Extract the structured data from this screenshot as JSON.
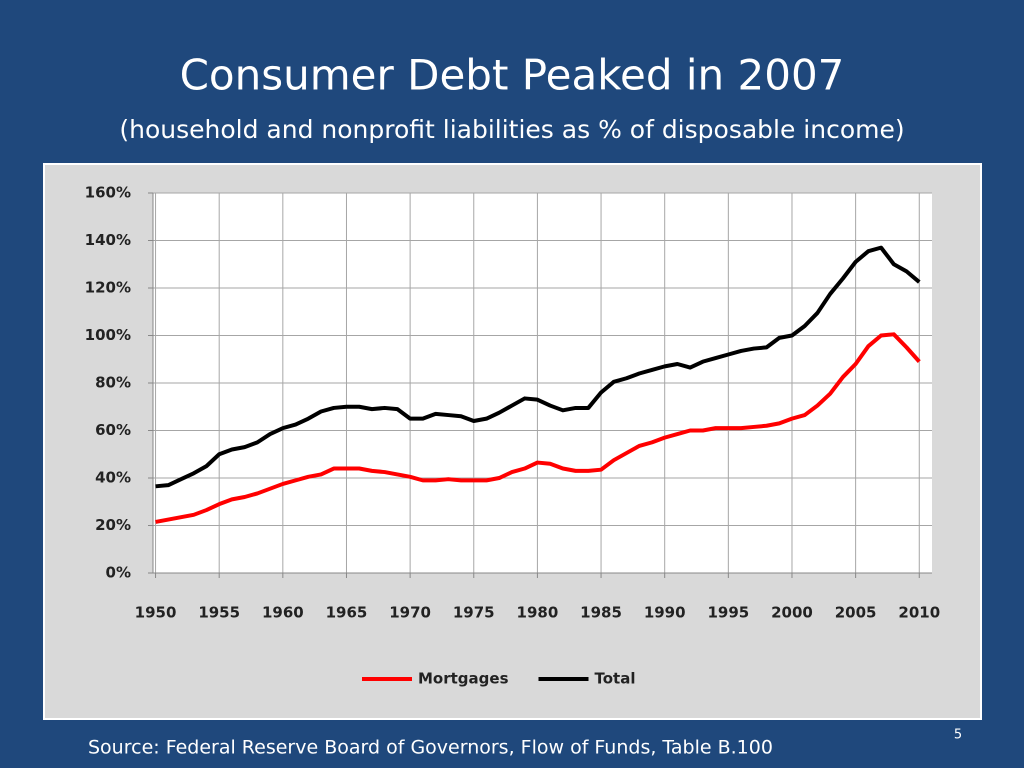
{
  "chart_data": {
    "type": "line",
    "title": "Consumer Debt Peaked in 2007",
    "subtitle": "(household and nonprofit liabilities as % of disposable income)",
    "x": [
      1950,
      1951,
      1952,
      1953,
      1954,
      1955,
      1956,
      1957,
      1958,
      1959,
      1960,
      1961,
      1962,
      1963,
      1964,
      1965,
      1966,
      1967,
      1968,
      1969,
      1970,
      1971,
      1972,
      1973,
      1974,
      1975,
      1976,
      1977,
      1978,
      1979,
      1980,
      1981,
      1982,
      1983,
      1984,
      1985,
      1986,
      1987,
      1988,
      1989,
      1990,
      1991,
      1992,
      1993,
      1994,
      1995,
      1996,
      1997,
      1998,
      1999,
      2000,
      2001,
      2002,
      2003,
      2004,
      2005,
      2006,
      2007,
      2008,
      2009,
      2010
    ],
    "series": [
      {
        "name": "Mortgages",
        "color": "#ff0000",
        "values": [
          21.5,
          22.5,
          23.5,
          24.5,
          26.5,
          29,
          31,
          32,
          33.5,
          35.5,
          37.5,
          39,
          40.5,
          41.5,
          44,
          44,
          44,
          43,
          42.5,
          41.5,
          40.5,
          39,
          39,
          39.5,
          39,
          39,
          39,
          40,
          42.5,
          44,
          46.5,
          46,
          44,
          43,
          43,
          43.5,
          47.5,
          50.5,
          53.5,
          55,
          57,
          58.5,
          60,
          60,
          61,
          61,
          61,
          61.5,
          62,
          63,
          65,
          66.5,
          70.5,
          75.5,
          82.5,
          88,
          95.5,
          100,
          100.5,
          95,
          89
        ]
      },
      {
        "name": "Total",
        "color": "#000000",
        "values": [
          36.5,
          37,
          39.5,
          42,
          45,
          50,
          52,
          53,
          55,
          58.5,
          61,
          62.5,
          65,
          68,
          69.5,
          70,
          70,
          69,
          69.5,
          69,
          65,
          65,
          67,
          66.5,
          66,
          64,
          65,
          67.5,
          70.5,
          73.5,
          73,
          70.5,
          68.5,
          69.5,
          69.5,
          76,
          80.5,
          82,
          84,
          85.5,
          87,
          88,
          86.5,
          89,
          90.5,
          92,
          93.5,
          94.5,
          95,
          99,
          100,
          104,
          109.5,
          117.5,
          124,
          131,
          135.5,
          137,
          130,
          127,
          122.5
        ]
      }
    ],
    "xlim": [
      1949.8,
      2011
    ],
    "ylim": [
      0,
      160
    ],
    "xticks": [
      1950,
      1955,
      1960,
      1965,
      1970,
      1975,
      1980,
      1985,
      1990,
      1995,
      2000,
      2005,
      2010
    ],
    "yticks": [
      {
        "value": 0,
        "label": "0%"
      },
      {
        "value": 20,
        "label": "20%"
      },
      {
        "value": 40,
        "label": "40%"
      },
      {
        "value": 60,
        "label": "60%"
      },
      {
        "value": 80,
        "label": "80%"
      },
      {
        "value": 100,
        "label": "100%"
      },
      {
        "value": 120,
        "label": "120%"
      },
      {
        "value": 140,
        "label": "140%"
      },
      {
        "value": 160,
        "label": "160%"
      }
    ],
    "grid": true,
    "legend": "bottom"
  },
  "footer": {
    "source": "Source: Federal Reserve Board of Governors, Flow of Funds, Table B.100",
    "page_number": 5
  }
}
